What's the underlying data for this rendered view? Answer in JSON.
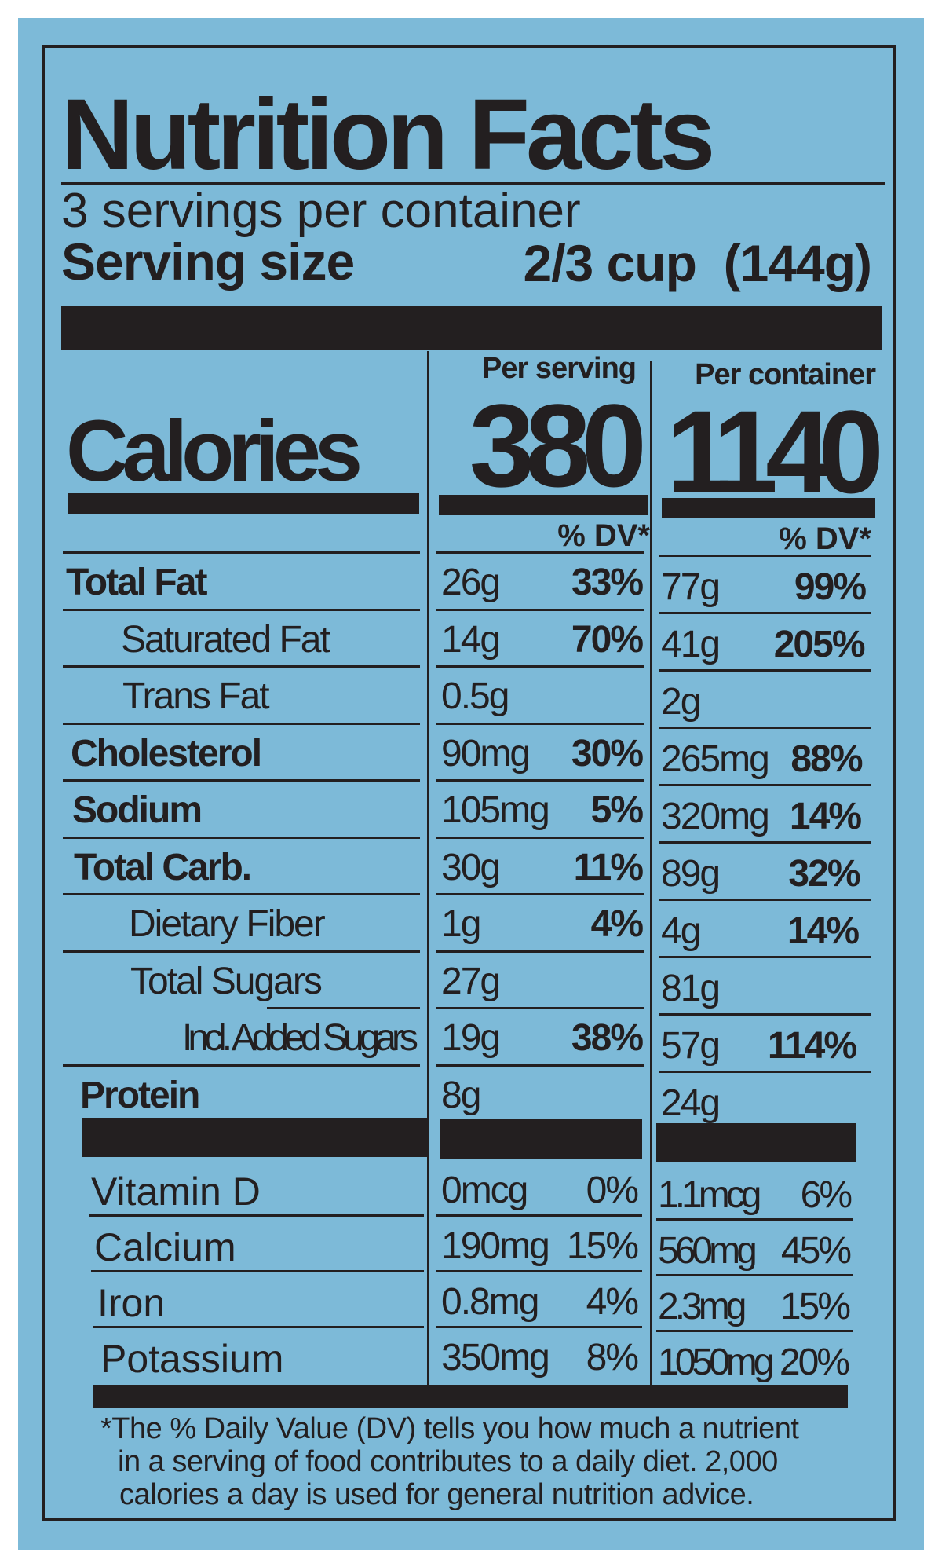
{
  "colors": {
    "background": "#7dbad8",
    "ink": "#231f20"
  },
  "title": "Nutrition Facts",
  "servings_per_container": "3 servings per container",
  "serving_size": {
    "label": "Serving size",
    "value": "2/3 cup  (144g)"
  },
  "calories": {
    "label": "Calories",
    "per_serving_header": "Per serving",
    "per_container_header": "Per container",
    "per_serving": "380",
    "per_container": "1140"
  },
  "dv_header": "% DV*",
  "nutrients": [
    {
      "label": "Total Fat",
      "bold": true,
      "indent": 0,
      "serving": "26g",
      "serving_dv": "33%",
      "container": "77g",
      "container_dv": "99%"
    },
    {
      "label": "Saturated Fat",
      "bold": false,
      "indent": 1,
      "serving": "14g",
      "serving_dv": "70%",
      "container": "41g",
      "container_dv": "205%"
    },
    {
      "label": "Trans Fat",
      "bold": false,
      "indent": 1,
      "serving": "0.5g",
      "serving_dv": "",
      "container": "2g",
      "container_dv": ""
    },
    {
      "label": "Cholesterol",
      "bold": true,
      "indent": 0,
      "serving": "90mg",
      "serving_dv": "30%",
      "container": "265mg",
      "container_dv": "88%"
    },
    {
      "label": "Sodium",
      "bold": true,
      "indent": 0,
      "serving": "105mg",
      "serving_dv": "5%",
      "container": "320mg",
      "container_dv": "14%"
    },
    {
      "label": "Total Carb.",
      "bold": true,
      "indent": 0,
      "serving": "30g",
      "serving_dv": "11%",
      "container": "89g",
      "container_dv": "32%"
    },
    {
      "label": "Dietary Fiber",
      "bold": false,
      "indent": 1,
      "serving": "1g",
      "serving_dv": "4%",
      "container": "4g",
      "container_dv": "14%"
    },
    {
      "label": "Total Sugars",
      "bold": false,
      "indent": 1,
      "serving": "27g",
      "serving_dv": "",
      "container": "81g",
      "container_dv": ""
    },
    {
      "label": "Incl. Added Sugars",
      "bold": false,
      "indent": 2,
      "serving": "19g",
      "serving_dv": "38%",
      "container": "57g",
      "container_dv": "114%"
    },
    {
      "label": "Protein",
      "bold": true,
      "indent": 0,
      "serving": "8g",
      "serving_dv": "",
      "container": "24g",
      "container_dv": ""
    }
  ],
  "vitamins": [
    {
      "label": "Vitamin D",
      "serving": "0mcg",
      "serving_dv": "0%",
      "container": "1.1mcg",
      "container_dv": "6%"
    },
    {
      "label": "Calcium",
      "serving": "190mg",
      "serving_dv": "15%",
      "container": "560mg",
      "container_dv": "45%"
    },
    {
      "label": "Iron",
      "serving": "0.8mg",
      "serving_dv": "4%",
      "container": "2.3mg",
      "container_dv": "15%"
    },
    {
      "label": "Potassium",
      "serving": "350mg",
      "serving_dv": "8%",
      "container": "1050mg",
      "container_dv": "20%"
    }
  ],
  "footnote": [
    "*The % Daily Value (DV) tells you how much a nutrient",
    "in a serving of food contributes to a daily diet. 2,000",
    "calories a day is used for general nutrition advice."
  ]
}
